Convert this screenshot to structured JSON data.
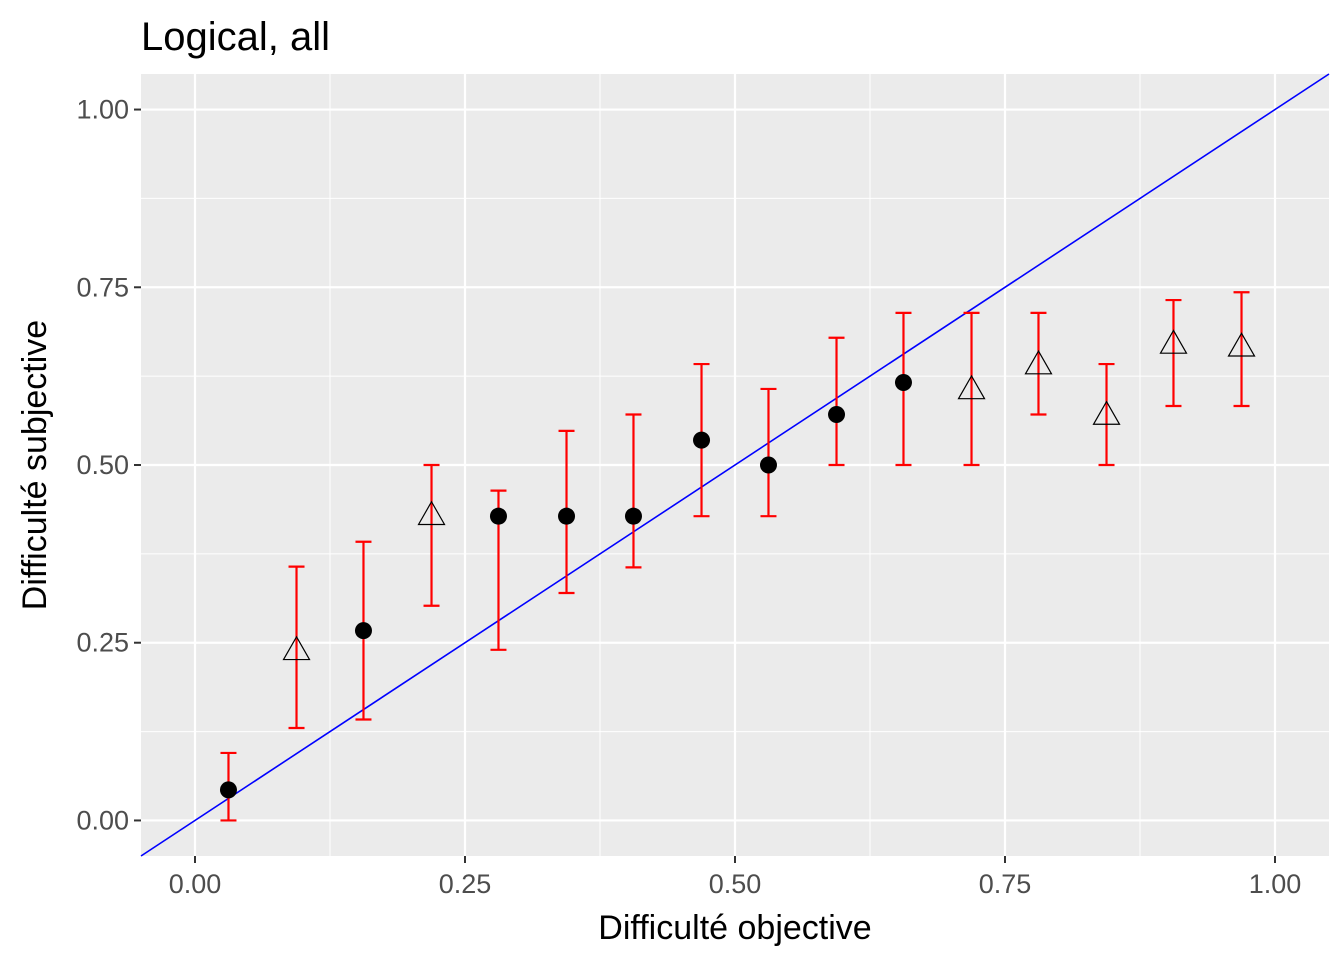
{
  "chart_data": {
    "type": "scatter",
    "title": "Logical, all",
    "xlabel": "Difficulté objective",
    "ylabel": "Difficulté subjective",
    "xlim": [
      -0.05,
      1.05
    ],
    "ylim": [
      -0.05,
      1.05
    ],
    "x_ticks": [
      "0.00",
      "0.25",
      "0.50",
      "0.75",
      "1.00"
    ],
    "y_ticks": [
      "0.00",
      "0.25",
      "0.50",
      "0.75",
      "1.00"
    ],
    "grid": true,
    "reference_line": {
      "slope": 1,
      "intercept": 0,
      "color": "#0000ff"
    },
    "errorbar_color": "#ff0000",
    "points": [
      {
        "x": 0.031,
        "y": 0.043,
        "ymin": 0.0,
        "ymax": 0.095,
        "shape": "filled-circle"
      },
      {
        "x": 0.094,
        "y": 0.24,
        "ymin": 0.13,
        "ymax": 0.357,
        "shape": "open-triangle"
      },
      {
        "x": 0.156,
        "y": 0.267,
        "ymin": 0.142,
        "ymax": 0.392,
        "shape": "filled-circle"
      },
      {
        "x": 0.219,
        "y": 0.43,
        "ymin": 0.302,
        "ymax": 0.5,
        "shape": "open-triangle"
      },
      {
        "x": 0.281,
        "y": 0.428,
        "ymin": 0.24,
        "ymax": 0.464,
        "shape": "filled-circle"
      },
      {
        "x": 0.344,
        "y": 0.428,
        "ymin": 0.32,
        "ymax": 0.548,
        "shape": "filled-circle"
      },
      {
        "x": 0.406,
        "y": 0.428,
        "ymin": 0.356,
        "ymax": 0.571,
        "shape": "filled-circle"
      },
      {
        "x": 0.469,
        "y": 0.535,
        "ymin": 0.428,
        "ymax": 0.642,
        "shape": "filled-circle"
      },
      {
        "x": 0.531,
        "y": 0.5,
        "ymin": 0.428,
        "ymax": 0.607,
        "shape": "filled-circle"
      },
      {
        "x": 0.594,
        "y": 0.571,
        "ymin": 0.5,
        "ymax": 0.679,
        "shape": "filled-circle"
      },
      {
        "x": 0.656,
        "y": 0.616,
        "ymin": 0.5,
        "ymax": 0.714,
        "shape": "filled-circle"
      },
      {
        "x": 0.719,
        "y": 0.607,
        "ymin": 0.5,
        "ymax": 0.714,
        "shape": "open-triangle"
      },
      {
        "x": 0.781,
        "y": 0.642,
        "ymin": 0.571,
        "ymax": 0.714,
        "shape": "open-triangle"
      },
      {
        "x": 0.844,
        "y": 0.571,
        "ymin": 0.5,
        "ymax": 0.642,
        "shape": "open-triangle"
      },
      {
        "x": 0.906,
        "y": 0.671,
        "ymin": 0.583,
        "ymax": 0.732,
        "shape": "open-triangle"
      },
      {
        "x": 0.969,
        "y": 0.667,
        "ymin": 0.583,
        "ymax": 0.743,
        "shape": "open-triangle"
      }
    ]
  }
}
